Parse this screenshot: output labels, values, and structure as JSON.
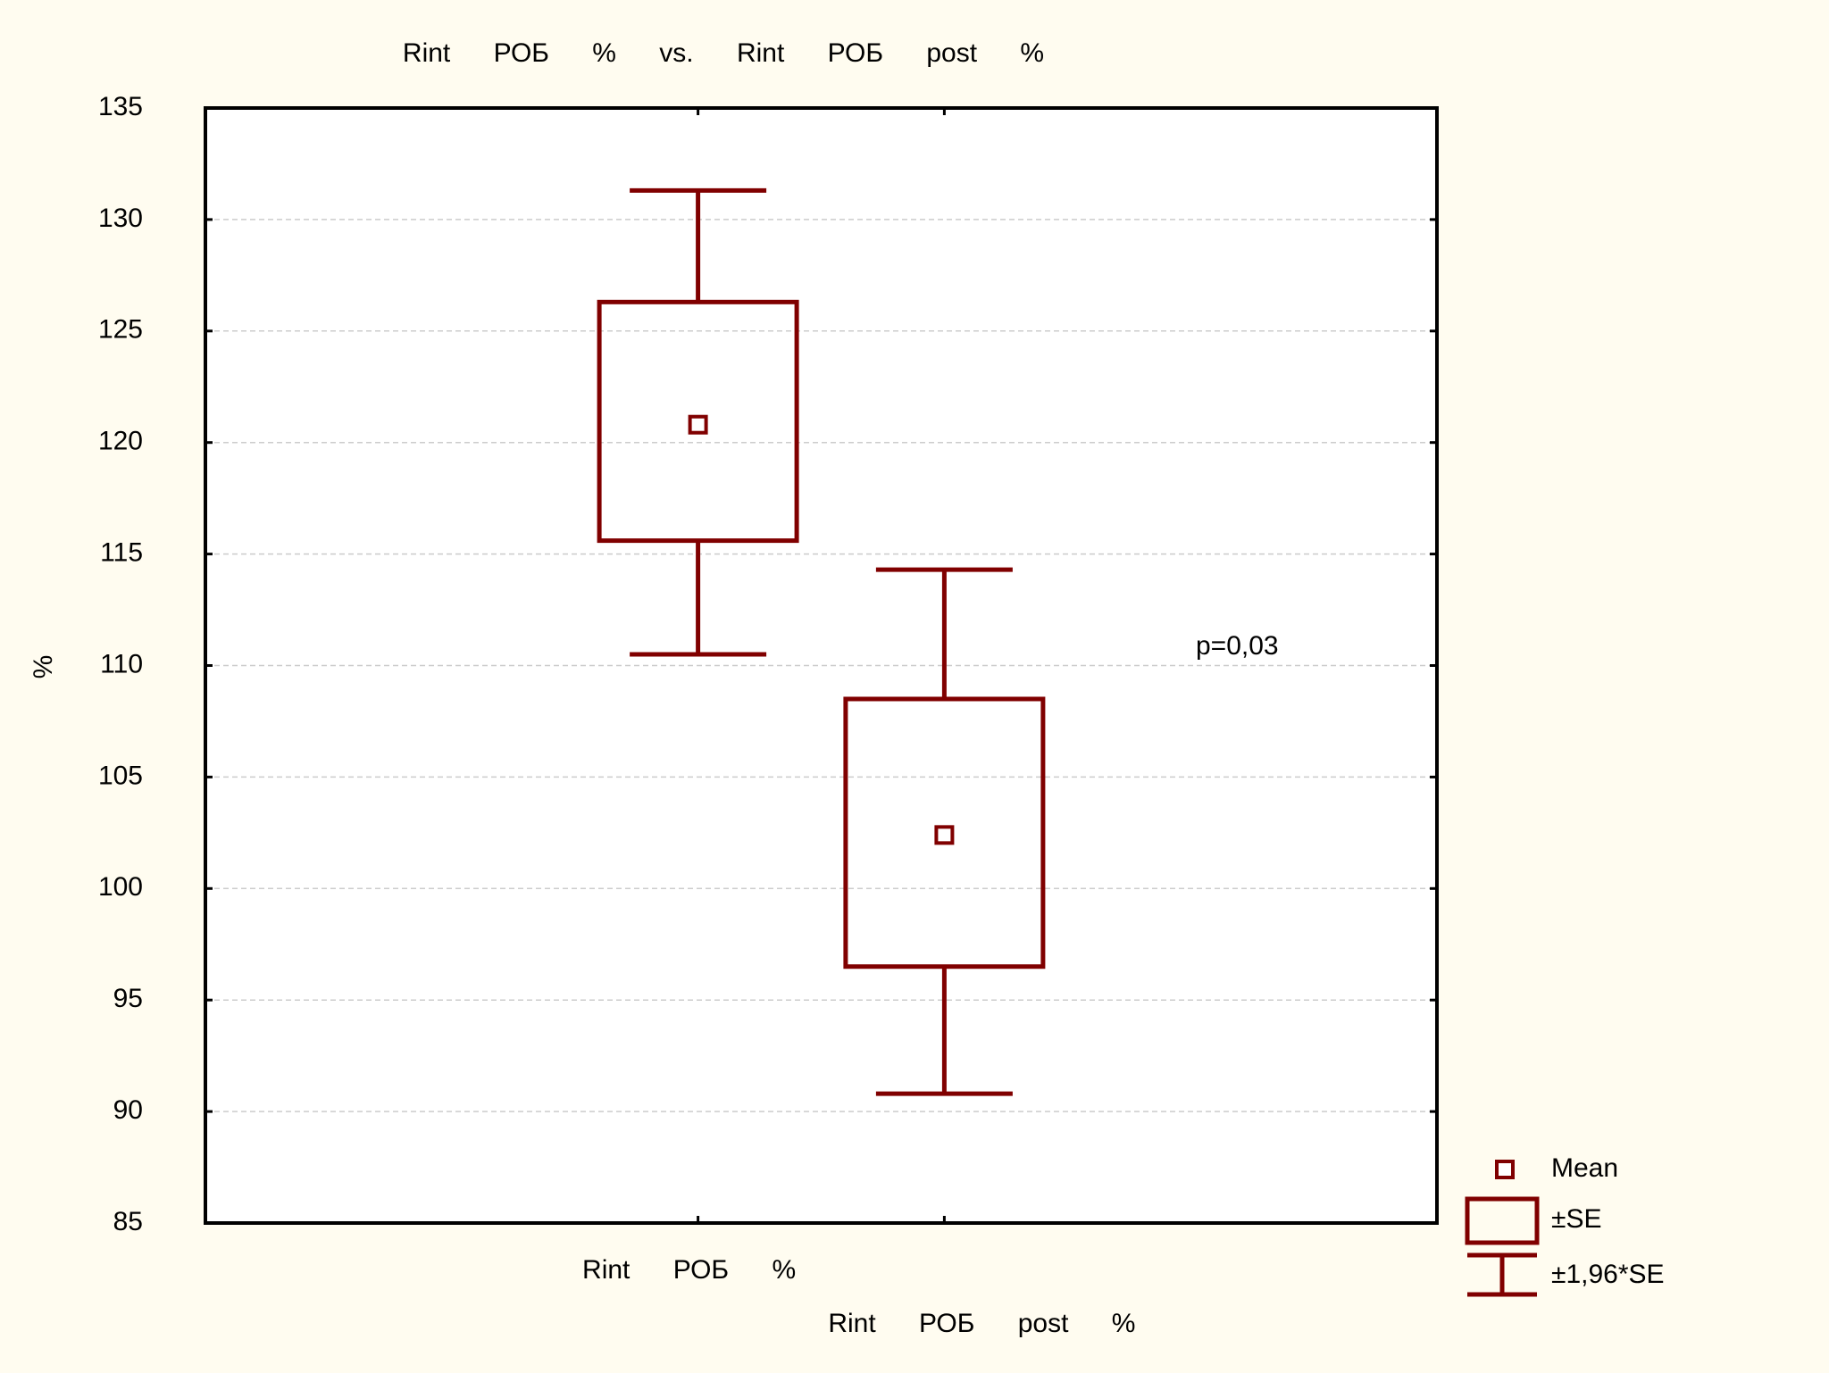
{
  "chart_data": {
    "type": "box",
    "title": "Rint РОБ % vs. Rint РОБ post %",
    "categories": [
      "Rint РОБ %",
      "Rint РОБ post %"
    ],
    "ylabel": "%",
    "annotation": "p=0,03",
    "color": "#800000",
    "series": [
      {
        "name": "Mean",
        "values": [
          120.8,
          102.4
        ]
      },
      {
        "name": "±SE",
        "low": [
          115.6,
          96.5
        ],
        "high": [
          126.3,
          108.5
        ]
      },
      {
        "name": "±1,96*SE",
        "low": [
          110.5,
          90.8
        ],
        "high": [
          131.3,
          114.3
        ]
      }
    ],
    "ylim": [
      85,
      135
    ],
    "yticks": [
      85,
      90,
      95,
      100,
      105,
      110,
      115,
      120,
      125,
      130,
      135
    ],
    "grid": true
  }
}
